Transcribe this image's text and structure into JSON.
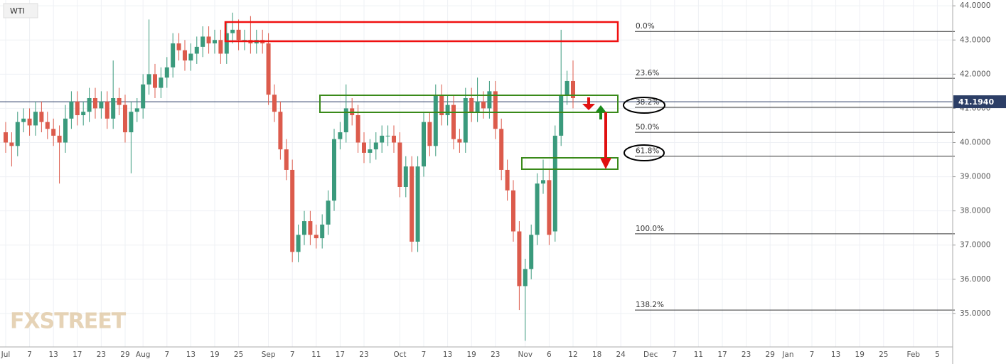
{
  "chart_data": {
    "type": "candlestick",
    "title": "WTI",
    "watermark": "FXSTREET",
    "up_color": "#3a9a7c",
    "down_color": "#dc5b4c",
    "grid": true,
    "xlim": [
      -0.95,
      158.57
    ],
    "ylim": [
      34.02,
      44.17
    ],
    "yticks": [
      {
        "value": 35,
        "label": "35.0000"
      },
      {
        "value": 36,
        "label": "36.0000"
      },
      {
        "value": 37,
        "label": "37.0000"
      },
      {
        "value": 38,
        "label": "38.0000"
      },
      {
        "value": 39,
        "label": "39.0000"
      },
      {
        "value": 40,
        "label": "40.0000"
      },
      {
        "value": 41,
        "label": "41.0000"
      },
      {
        "value": 42,
        "label": "42.0000"
      },
      {
        "value": 43,
        "label": "43.0000"
      },
      {
        "value": 44,
        "label": "44.0000"
      }
    ],
    "xticks": [
      {
        "value": 0,
        "label": "Jul"
      },
      {
        "value": 4,
        "label": "7"
      },
      {
        "value": 8,
        "label": "13"
      },
      {
        "value": 12,
        "label": "17"
      },
      {
        "value": 16,
        "label": "23"
      },
      {
        "value": 20,
        "label": "29"
      },
      {
        "value": 23,
        "label": "Aug"
      },
      {
        "value": 27,
        "label": "7"
      },
      {
        "value": 31,
        "label": "13"
      },
      {
        "value": 35,
        "label": "19"
      },
      {
        "value": 39,
        "label": "25"
      },
      {
        "value": 44,
        "label": "Sep"
      },
      {
        "value": 48,
        "label": "7"
      },
      {
        "value": 52,
        "label": "11"
      },
      {
        "value": 56,
        "label": "17"
      },
      {
        "value": 60,
        "label": "23"
      },
      {
        "value": 66,
        "label": "Oct"
      },
      {
        "value": 70,
        "label": "7"
      },
      {
        "value": 74,
        "label": "13"
      },
      {
        "value": 78,
        "label": "19"
      },
      {
        "value": 82,
        "label": "23"
      },
      {
        "value": 87,
        "label": "Nov"
      },
      {
        "value": 91,
        "label": "6"
      },
      {
        "value": 95,
        "label": "12"
      },
      {
        "value": 99,
        "label": "18"
      },
      {
        "value": 103,
        "label": "24"
      },
      {
        "value": 108,
        "label": "Dec"
      },
      {
        "value": 112,
        "label": "7"
      },
      {
        "value": 116,
        "label": "11"
      },
      {
        "value": 120,
        "label": "17"
      },
      {
        "value": 124,
        "label": "23"
      },
      {
        "value": 128,
        "label": "29"
      },
      {
        "value": 131,
        "label": "Jan"
      },
      {
        "value": 135,
        "label": "7"
      },
      {
        "value": 139,
        "label": "13"
      },
      {
        "value": 143,
        "label": "19"
      },
      {
        "value": 147,
        "label": "25"
      },
      {
        "value": 152,
        "label": "Feb"
      },
      {
        "value": 156,
        "label": "5"
      }
    ],
    "last_price": {
      "value": 41.194,
      "label": "41.1940"
    },
    "fib_levels": [
      {
        "label": "0.0%",
        "value": 43.25
      },
      {
        "label": "23.6%",
        "value": 41.88
      },
      {
        "label": "38.2%",
        "value": 41.03
      },
      {
        "label": "50.0%",
        "value": 40.3
      },
      {
        "label": "61.8%",
        "value": 39.6
      },
      {
        "label": "100.0%",
        "value": 37.33
      },
      {
        "label": "138.2%",
        "value": 35.1
      }
    ],
    "x": [
      0,
      1,
      2,
      3,
      4,
      5,
      6,
      7,
      8,
      9,
      10,
      11,
      12,
      13,
      14,
      15,
      16,
      17,
      18,
      19,
      20,
      21,
      22,
      23,
      24,
      25,
      26,
      27,
      28,
      29,
      30,
      31,
      32,
      33,
      34,
      35,
      36,
      37,
      38,
      39,
      40,
      41,
      42,
      43,
      44,
      45,
      46,
      47,
      48,
      49,
      50,
      51,
      52,
      53,
      54,
      55,
      56,
      57,
      58,
      59,
      60,
      61,
      62,
      63,
      64,
      65,
      66,
      67,
      68,
      69,
      70,
      71,
      72,
      73,
      74,
      75,
      76,
      77,
      78,
      79,
      80,
      81,
      82,
      83,
      84,
      85,
      86,
      87,
      88,
      89,
      90,
      91,
      92,
      93,
      94,
      95
    ],
    "open": [
      40.3,
      40.0,
      39.9,
      40.6,
      40.7,
      40.5,
      40.9,
      40.6,
      40.4,
      40.2,
      40.0,
      40.7,
      41.2,
      40.8,
      40.9,
      41.3,
      41.0,
      41.2,
      40.7,
      41.3,
      41.1,
      40.3,
      40.9,
      41.0,
      41.7,
      42.0,
      41.6,
      41.9,
      42.2,
      42.9,
      42.7,
      42.4,
      42.6,
      42.8,
      43.1,
      42.9,
      43.0,
      42.6,
      43.2,
      43.3,
      43.0,
      43.0,
      42.9,
      43.0,
      42.9,
      41.4,
      40.9,
      39.8,
      39.2,
      36.8,
      37.3,
      37.7,
      37.3,
      37.2,
      37.6,
      38.3,
      40.1,
      40.3,
      41.0,
      40.8,
      40.0,
      39.7,
      39.8,
      40.0,
      40.2,
      40.2,
      40.0,
      38.7,
      39.3,
      37.1,
      39.3,
      40.6,
      39.9,
      41.4,
      40.8,
      41.1,
      40.1,
      40.0,
      41.3,
      40.9,
      41.2,
      41.0,
      41.5,
      40.4,
      39.2,
      38.6,
      37.4,
      35.8,
      36.3,
      37.3,
      38.8,
      38.9,
      37.4,
      40.2,
      41.4,
      41.8
    ],
    "high": [
      40.6,
      40.3,
      40.9,
      41.0,
      41.0,
      41.2,
      41.2,
      40.9,
      40.7,
      40.5,
      41.1,
      41.5,
      41.5,
      41.2,
      41.6,
      41.6,
      41.5,
      41.5,
      42.4,
      41.6,
      41.4,
      41.2,
      41.3,
      42.0,
      43.6,
      42.3,
      42.2,
      42.5,
      43.2,
      43.2,
      43.0,
      42.9,
      43.1,
      43.4,
      43.4,
      43.3,
      43.3,
      43.5,
      43.8,
      43.6,
      43.3,
      43.7,
      43.3,
      43.3,
      43.2,
      41.7,
      41.2,
      40.1,
      39.5,
      37.6,
      38.0,
      38.0,
      37.6,
      37.9,
      38.6,
      40.4,
      40.6,
      41.7,
      41.3,
      41.1,
      40.3,
      40.1,
      40.3,
      40.5,
      40.5,
      40.5,
      40.3,
      39.6,
      39.6,
      39.6,
      40.9,
      40.9,
      41.7,
      41.7,
      41.4,
      41.4,
      40.4,
      41.6,
      41.6,
      41.9,
      41.5,
      41.8,
      41.8,
      40.7,
      39.5,
      38.9,
      37.7,
      36.6,
      37.6,
      39.1,
      39.5,
      39.2,
      40.5,
      43.3,
      42.1,
      42.4
    ],
    "low": [
      39.7,
      39.3,
      39.6,
      40.3,
      40.2,
      40.2,
      40.3,
      40.1,
      39.9,
      38.8,
      39.7,
      40.4,
      40.5,
      40.5,
      40.6,
      40.7,
      40.7,
      40.4,
      40.4,
      40.8,
      40.0,
      39.1,
      40.6,
      40.7,
      41.4,
      41.3,
      41.3,
      41.6,
      41.9,
      42.4,
      42.1,
      42.1,
      42.3,
      42.5,
      42.6,
      42.6,
      42.3,
      42.3,
      42.9,
      42.7,
      42.7,
      42.6,
      42.6,
      42.6,
      41.1,
      40.6,
      39.5,
      38.9,
      36.5,
      36.5,
      37.0,
      37.0,
      36.9,
      36.9,
      37.3,
      38.0,
      39.8,
      40.0,
      40.5,
      39.7,
      39.4,
      39.4,
      39.5,
      39.7,
      39.9,
      39.7,
      38.4,
      38.4,
      36.8,
      36.8,
      39.0,
      39.6,
      39.6,
      40.5,
      40.5,
      39.8,
      39.7,
      39.7,
      40.6,
      40.6,
      40.7,
      40.7,
      40.1,
      38.9,
      38.3,
      37.1,
      35.1,
      34.2,
      36.0,
      37.0,
      38.5,
      37.0,
      37.1,
      39.9,
      41.1,
      41.0
    ],
    "close": [
      40.0,
      39.9,
      40.6,
      40.7,
      40.5,
      40.9,
      40.6,
      40.4,
      40.2,
      40.0,
      40.7,
      41.2,
      40.8,
      40.9,
      41.3,
      41.0,
      41.2,
      40.7,
      41.3,
      41.1,
      40.3,
      40.9,
      41.0,
      41.7,
      42.0,
      41.6,
      41.9,
      42.2,
      42.9,
      42.7,
      42.4,
      42.6,
      42.8,
      43.1,
      42.9,
      43.0,
      42.6,
      43.2,
      43.3,
      43.0,
      43.0,
      42.9,
      43.0,
      42.9,
      41.4,
      40.9,
      39.8,
      39.2,
      36.8,
      37.3,
      37.7,
      37.3,
      37.2,
      37.6,
      38.3,
      40.1,
      40.3,
      41.0,
      40.8,
      40.0,
      39.7,
      39.8,
      40.0,
      40.2,
      40.2,
      40.0,
      38.7,
      39.3,
      37.1,
      39.3,
      40.6,
      39.9,
      41.4,
      40.8,
      41.1,
      40.1,
      40.0,
      41.3,
      40.9,
      41.2,
      41.0,
      41.5,
      40.4,
      39.2,
      38.6,
      37.4,
      35.8,
      36.3,
      37.3,
      38.8,
      38.9,
      37.3,
      40.2,
      41.4,
      41.8,
      41.3
    ]
  }
}
